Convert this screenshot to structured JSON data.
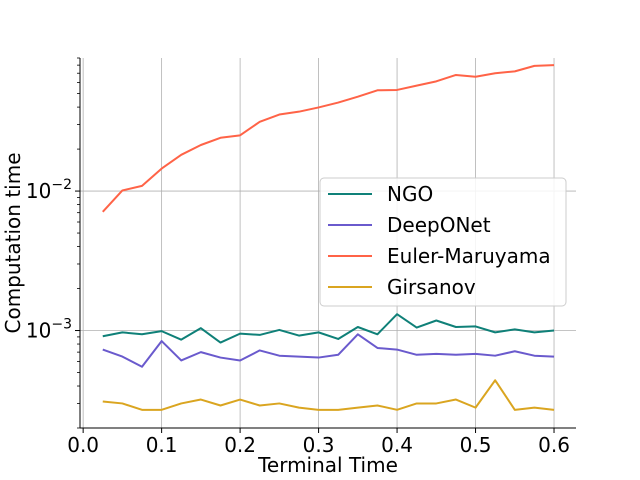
{
  "chart_data": {
    "type": "line",
    "xlabel": "Terminal Time",
    "ylabel": "Computation time",
    "yscale": "log",
    "xlim": [
      -0.004,
      0.628
    ],
    "ylim": [
      0.0002,
      0.09
    ],
    "grid": true,
    "legend_position": "center-right",
    "x_ticks": [
      0.0,
      0.1,
      0.2,
      0.3,
      0.4,
      0.5,
      0.6
    ],
    "x_tick_labels": [
      "0.0",
      "0.1",
      "0.2",
      "0.3",
      "0.4",
      "0.5",
      "0.6"
    ],
    "y_major_ticks": [
      0.001,
      0.01
    ],
    "y_tick_labels": [
      "10−3",
      "10−2"
    ],
    "x": [
      0.025,
      0.05,
      0.075,
      0.1,
      0.125,
      0.15,
      0.175,
      0.2,
      0.225,
      0.25,
      0.275,
      0.3,
      0.325,
      0.35,
      0.375,
      0.4,
      0.425,
      0.45,
      0.475,
      0.5,
      0.525,
      0.55,
      0.575,
      0.6
    ],
    "series": [
      {
        "name": "NGO",
        "color": "#0f8078",
        "values": [
          0.00091,
          0.00097,
          0.00094,
          0.00099,
          0.00086,
          0.00104,
          0.00082,
          0.00095,
          0.00093,
          0.00101,
          0.00092,
          0.00097,
          0.00087,
          0.00106,
          0.00094,
          0.00131,
          0.00105,
          0.00118,
          0.00106,
          0.00107,
          0.00097,
          0.00102,
          0.00097,
          0.001
        ]
      },
      {
        "name": "DeepONet",
        "color": "#6a5acd",
        "values": [
          0.00073,
          0.00065,
          0.00055,
          0.00084,
          0.00061,
          0.0007,
          0.00064,
          0.00061,
          0.00072,
          0.00066,
          0.00065,
          0.00064,
          0.00067,
          0.00094,
          0.00075,
          0.00073,
          0.00067,
          0.00068,
          0.00067,
          0.00068,
          0.00066,
          0.00071,
          0.00066,
          0.00065
        ]
      },
      {
        "name": "Euler-Maruyama",
        "color": "#ff6347",
        "values": [
          0.0071,
          0.0101,
          0.0109,
          0.0145,
          0.0182,
          0.0214,
          0.0241,
          0.0251,
          0.0314,
          0.0354,
          0.0371,
          0.0398,
          0.0431,
          0.0475,
          0.0528,
          0.0531,
          0.057,
          0.0612,
          0.068,
          0.066,
          0.07,
          0.0722,
          0.079,
          0.08
        ]
      },
      {
        "name": "Girsanov",
        "color": "#daa520",
        "values": [
          0.00031,
          0.0003,
          0.00027,
          0.00027,
          0.0003,
          0.00032,
          0.00029,
          0.00032,
          0.00029,
          0.0003,
          0.00028,
          0.00027,
          0.00027,
          0.00028,
          0.00029,
          0.00027,
          0.0003,
          0.0003,
          0.00032,
          0.00028,
          0.00044,
          0.00027,
          0.00028,
          0.00027
        ]
      }
    ]
  }
}
